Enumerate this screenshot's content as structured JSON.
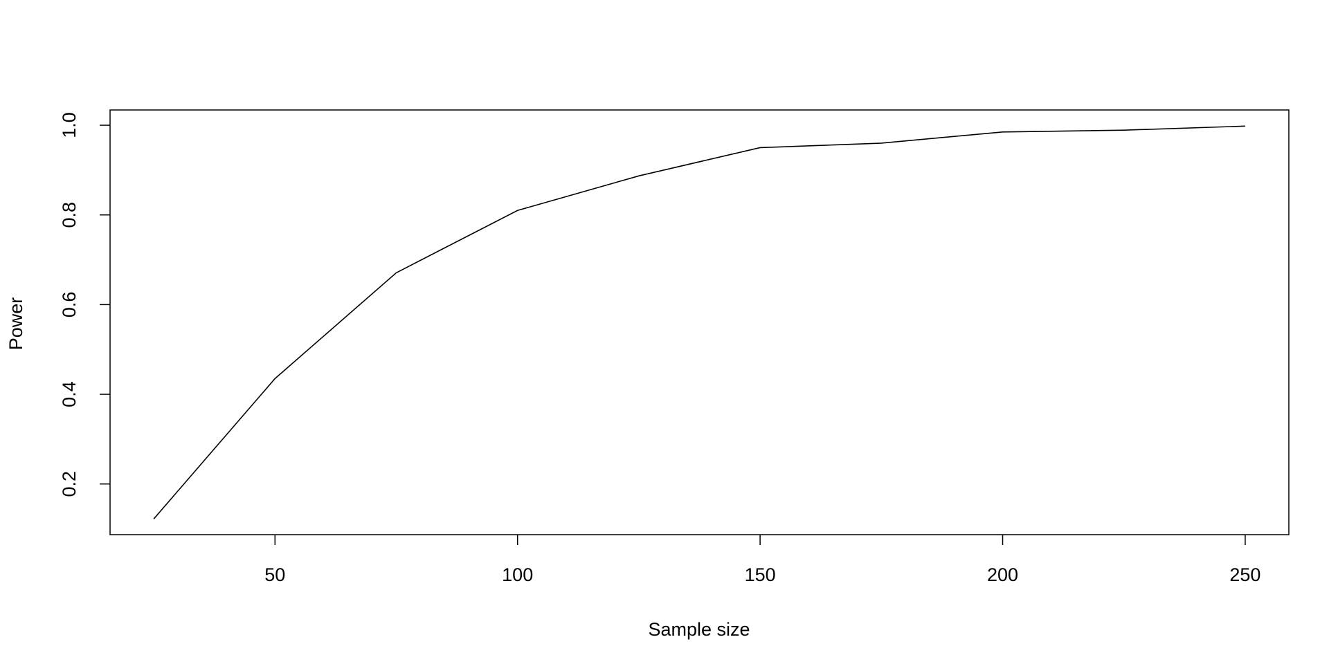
{
  "chart_data": {
    "type": "line",
    "xlabel": "Sample size",
    "ylabel": "Power",
    "x": [
      25,
      50,
      75,
      100,
      125,
      150,
      175,
      200,
      225,
      250
    ],
    "y": [
      0.122,
      0.435,
      0.671,
      0.81,
      0.887,
      0.95,
      0.96,
      0.985,
      0.989,
      0.998
    ],
    "color": "#000000",
    "xlim": [
      16,
      259
    ],
    "ylim": [
      0.087,
      1.034
    ],
    "xticks": [
      50,
      100,
      150,
      200,
      250
    ],
    "yticks": [
      0.2,
      0.4,
      0.6,
      0.8,
      {
        "value": 1,
        "label": "1.0"
      }
    ],
    "grid": false
  }
}
